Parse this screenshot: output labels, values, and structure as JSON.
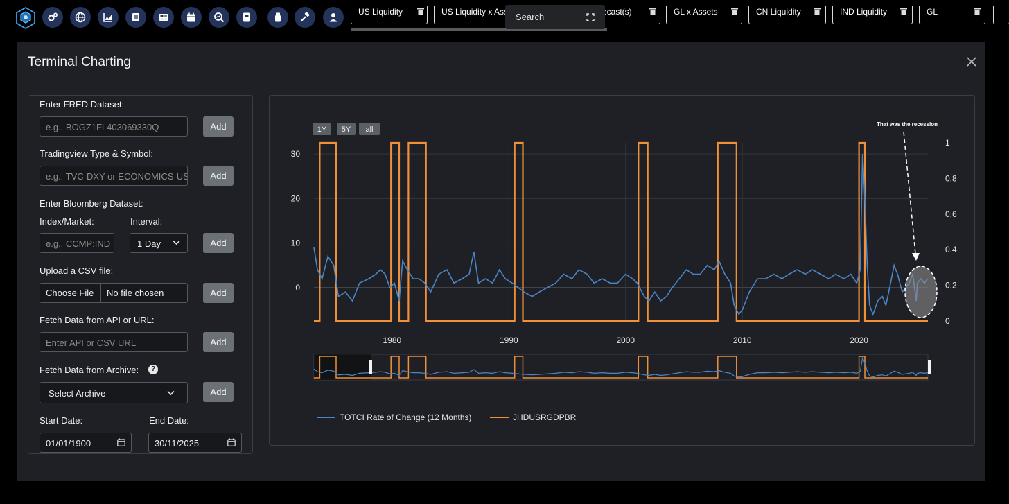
{
  "toolbar": {
    "icons": [
      "logo-icon",
      "settings-gears-icon",
      "globe-icon",
      "area-chart-icon",
      "document-icon",
      "news-icon",
      "calendar-icon",
      "search-chart-icon",
      "book-icon",
      "jar-icon",
      "hammer-icon",
      "user-icon"
    ],
    "tabs": [
      {
        "label": "US Liquidity"
      },
      {
        "label": "US Liquidity x Assets"
      },
      {
        "label": "Forecast(s)"
      },
      {
        "label": "GL x Assets"
      },
      {
        "label": "CN Liquidity"
      },
      {
        "label": "IND Liquidity"
      },
      {
        "label": "GL"
      }
    ],
    "search_label": "Search"
  },
  "modal": {
    "title": "Terminal Charting"
  },
  "form": {
    "fred_label": "Enter FRED Dataset:",
    "fred_placeholder": "e.g., BOGZ1FL403069330Q",
    "tv_label": "Tradingview Type & Symbol:",
    "tv_placeholder": "e.g., TVC-DXY or ECONOMICS-USGDP",
    "bbg_label": "Enter Bloomberg Dataset:",
    "index_label": "Index/Market:",
    "interval_label": "Interval:",
    "index_placeholder": "e.g., CCMP:IND",
    "interval_value": "1 Day",
    "csv_label": "Upload a CSV file:",
    "choose_file": "Choose File",
    "no_file": "No file chosen",
    "api_label": "Fetch Data from API or URL:",
    "api_placeholder": "Enter API or CSV URL",
    "archive_label": "Fetch Data from Archive:",
    "archive_value": "Select Archive",
    "start_label": "Start Date:",
    "end_label": "End Date:",
    "start_value": "01/01/1900",
    "end_value": "30/11/2025",
    "add_label": "Add",
    "help_glyph": "?"
  },
  "chart_data": {
    "type": "line",
    "range_buttons": [
      "1Y",
      "5Y",
      "all"
    ],
    "annotation": "That was the recession",
    "x_ticks": [
      "1980",
      "1990",
      "2000",
      "2010",
      "2020"
    ],
    "y_left_ticks": [
      "0",
      "10",
      "20",
      "30"
    ],
    "y_right_ticks": [
      "0",
      "0.2",
      "0.4",
      "0.6",
      "0.8",
      "1"
    ],
    "x_range": [
      1973.3,
      2025.9
    ],
    "y_left_range": [
      -7.5,
      32.5
    ],
    "y_right_range": [
      0,
      1
    ],
    "colors": {
      "rate": "#4a86c8",
      "recession": "#f0913a"
    },
    "series": [
      {
        "name": "TOTCI Rate of Change (12 Months)",
        "axis": "left",
        "points": [
          [
            1973.3,
            9
          ],
          [
            1973.6,
            4
          ],
          [
            1974.0,
            2
          ],
          [
            1974.5,
            7
          ],
          [
            1975.0,
            5
          ],
          [
            1975.4,
            -2
          ],
          [
            1976.0,
            -1
          ],
          [
            1976.6,
            -3
          ],
          [
            1977.2,
            1
          ],
          [
            1978.0,
            2
          ],
          [
            1978.6,
            3
          ],
          [
            1979.0,
            4
          ],
          [
            1979.4,
            3
          ],
          [
            1979.8,
            0
          ],
          [
            1980.2,
            1
          ],
          [
            1980.6,
            -3
          ],
          [
            1980.9,
            6
          ],
          [
            1981.3,
            4
          ],
          [
            1981.8,
            2
          ],
          [
            1982.3,
            2
          ],
          [
            1982.8,
            1
          ],
          [
            1983.3,
            -1
          ],
          [
            1984.0,
            3
          ],
          [
            1984.7,
            4
          ],
          [
            1985.3,
            1
          ],
          [
            1986.0,
            2
          ],
          [
            1986.6,
            3
          ],
          [
            1987.0,
            8
          ],
          [
            1987.4,
            1
          ],
          [
            1988.0,
            2
          ],
          [
            1988.6,
            1
          ],
          [
            1989.2,
            4
          ],
          [
            1989.7,
            2
          ],
          [
            1990.3,
            1
          ],
          [
            1990.8,
            0
          ],
          [
            1991.3,
            -1
          ],
          [
            1992.0,
            -2
          ],
          [
            1992.6,
            -1
          ],
          [
            1993.3,
            0
          ],
          [
            1994.0,
            1
          ],
          [
            1994.7,
            3
          ],
          [
            1995.4,
            2
          ],
          [
            1996.0,
            4
          ],
          [
            1996.7,
            3
          ],
          [
            1997.3,
            1
          ],
          [
            1998.0,
            2
          ],
          [
            1998.7,
            1
          ],
          [
            1999.3,
            1
          ],
          [
            2000.0,
            3
          ],
          [
            2000.6,
            2
          ],
          [
            2001.0,
            1
          ],
          [
            2001.6,
            -2
          ],
          [
            2002.0,
            -3
          ],
          [
            2002.5,
            -1
          ],
          [
            2003.0,
            -3
          ],
          [
            2003.5,
            -2
          ],
          [
            2004.0,
            0
          ],
          [
            2004.6,
            2
          ],
          [
            2005.2,
            4
          ],
          [
            2005.8,
            3
          ],
          [
            2006.4,
            3
          ],
          [
            2007.0,
            5
          ],
          [
            2007.6,
            4
          ],
          [
            2008.0,
            6
          ],
          [
            2008.5,
            3
          ],
          [
            2009.0,
            1
          ],
          [
            2009.3,
            -4
          ],
          [
            2009.7,
            -6
          ],
          [
            2010.0,
            -5
          ],
          [
            2010.6,
            -1
          ],
          [
            2011.3,
            2
          ],
          [
            2012.0,
            2
          ],
          [
            2012.7,
            3
          ],
          [
            2013.4,
            2
          ],
          [
            2014.0,
            3
          ],
          [
            2014.7,
            4
          ],
          [
            2015.4,
            3
          ],
          [
            2016.0,
            4
          ],
          [
            2016.7,
            3
          ],
          [
            2017.4,
            2
          ],
          [
            2018.0,
            3
          ],
          [
            2018.7,
            2
          ],
          [
            2019.3,
            3
          ],
          [
            2019.8,
            1
          ],
          [
            2020.1,
            4
          ],
          [
            2020.3,
            30
          ],
          [
            2020.5,
            20
          ],
          [
            2020.7,
            5
          ],
          [
            2020.9,
            -4
          ],
          [
            2021.2,
            -6
          ],
          [
            2021.6,
            -3
          ],
          [
            2022.0,
            -2
          ],
          [
            2022.3,
            -4
          ],
          [
            2022.7,
            1
          ],
          [
            2023.0,
            5
          ],
          [
            2023.3,
            3
          ],
          [
            2023.7,
            -1
          ],
          [
            2024.0,
            0
          ],
          [
            2024.3,
            1
          ],
          [
            2024.6,
            3
          ],
          [
            2024.9,
            -3
          ],
          [
            2025.0,
            1
          ],
          [
            2025.3,
            2
          ],
          [
            2025.6,
            1
          ],
          [
            2025.9,
            2
          ]
        ]
      },
      {
        "name": "JHDUSRGDPBR",
        "axis": "right",
        "points": [
          [
            1973.3,
            0
          ],
          [
            1973.8,
            0
          ],
          [
            1973.8,
            1
          ],
          [
            1975.2,
            1
          ],
          [
            1975.2,
            0
          ],
          [
            1979.9,
            0
          ],
          [
            1979.9,
            1
          ],
          [
            1980.6,
            1
          ],
          [
            1980.6,
            0
          ],
          [
            1981.4,
            0
          ],
          [
            1981.4,
            1
          ],
          [
            1982.9,
            1
          ],
          [
            1982.9,
            0
          ],
          [
            1990.5,
            0
          ],
          [
            1990.5,
            1
          ],
          [
            1991.2,
            1
          ],
          [
            1991.2,
            0
          ],
          [
            2001.1,
            0
          ],
          [
            2001.1,
            1
          ],
          [
            2001.9,
            1
          ],
          [
            2001.9,
            0
          ],
          [
            2007.9,
            0
          ],
          [
            2007.9,
            1
          ],
          [
            2009.5,
            1
          ],
          [
            2009.5,
            0
          ],
          [
            2020.0,
            0
          ],
          [
            2020.0,
            1
          ],
          [
            2020.5,
            1
          ],
          [
            2020.5,
            0
          ],
          [
            2025.9,
            0
          ]
        ]
      }
    ]
  }
}
